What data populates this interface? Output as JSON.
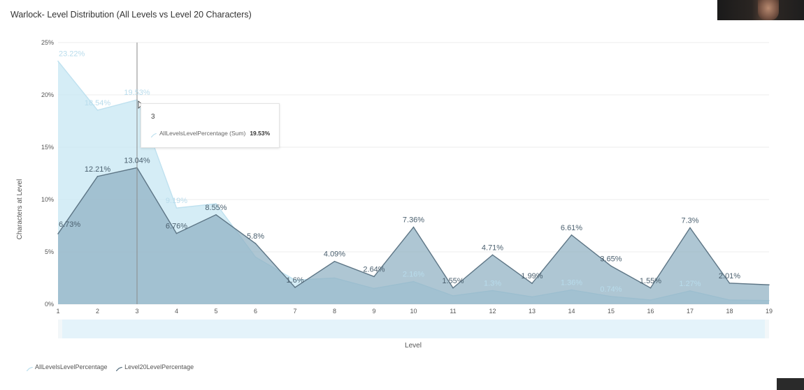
{
  "title": "Warlock- Level Distribution (All Levels vs Level 20 Characters)",
  "colors": {
    "all_levels_fill": "#cbe9f4",
    "all_levels_line": "#bfe1ef",
    "level20_fill": "#8fb0c2",
    "level20_line": "#5d7585",
    "grid": "#ececec",
    "cursor": "#8a8a8a"
  },
  "tooltip": {
    "category": "3",
    "series_label": "AllLevelsLevelPercentage (Sum)",
    "value": "19.53%"
  },
  "legend": {
    "all_levels": "AllLevelsLevelPercentage",
    "level20": "Level20LevelPercentage"
  },
  "chart_data": {
    "type": "area",
    "xlabel": "Level",
    "ylabel": "Characters at Level",
    "ylim": [
      0,
      25
    ],
    "y_ticks": [
      "0%",
      "5%",
      "10%",
      "15%",
      "20%",
      "25%"
    ],
    "categories": [
      "1",
      "2",
      "3",
      "4",
      "5",
      "6",
      "7",
      "8",
      "9",
      "10",
      "11",
      "12",
      "13",
      "14",
      "15",
      "16",
      "17",
      "18",
      "19"
    ],
    "grid": true,
    "legend_position": "bottom-left",
    "series": [
      {
        "name": "AllLevelsLevelPercentage",
        "values": [
          23.22,
          18.54,
          19.53,
          9.19,
          9.6,
          4.5,
          2.3,
          2.5,
          1.5,
          2.16,
          0.8,
          1.3,
          0.7,
          1.36,
          0.74,
          0.4,
          1.27,
          0.4,
          0.35
        ],
        "labels": [
          "23.22%",
          "18.54%",
          "19.53%",
          "9.19%",
          "",
          "",
          "",
          "",
          "",
          "2.16%",
          "",
          "1.3%",
          "",
          "1.36%",
          "0.74%",
          "",
          "1.27%",
          "",
          ""
        ]
      },
      {
        "name": "Level20LevelPercentage",
        "values": [
          6.73,
          12.21,
          13.04,
          6.76,
          8.55,
          5.8,
          1.6,
          4.09,
          2.64,
          7.36,
          1.55,
          4.71,
          1.99,
          6.61,
          3.65,
          1.55,
          7.3,
          2.01,
          1.85
        ],
        "labels": [
          "6.73%",
          "12.21%",
          "13.04%",
          "6.76%",
          "8.55%",
          "5.8%",
          "1.6%",
          "4.09%",
          "2.64%",
          "7.36%",
          "1.55%",
          "4.71%",
          "1.99%",
          "6.61%",
          "3.65%",
          "1.55%",
          "7.3%",
          "2.01%",
          ""
        ]
      }
    ]
  }
}
